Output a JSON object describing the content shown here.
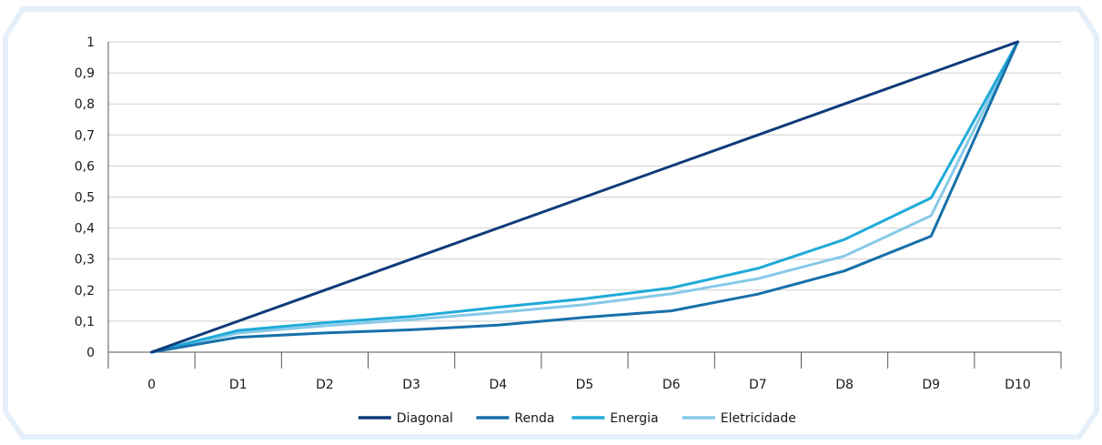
{
  "chart_data": {
    "type": "line",
    "title": "",
    "xlabel": "",
    "ylabel": "",
    "categories": [
      "0",
      "D1",
      "D2",
      "D3",
      "D4",
      "D5",
      "D6",
      "D7",
      "D8",
      "D9",
      "D10"
    ],
    "ylim": [
      0,
      1
    ],
    "yticks": [
      "0",
      "0,1",
      "0,2",
      "0,3",
      "0,4",
      "0,5",
      "0,6",
      "0,7",
      "0,8",
      "0,9",
      "1"
    ],
    "grid": true,
    "legend_position": "bottom",
    "series": [
      {
        "name": "Diagonal",
        "color": "#0f3a7a",
        "values": [
          0,
          0.1,
          0.2,
          0.3,
          0.4,
          0.5,
          0.6,
          0.7,
          0.8,
          0.9,
          1
        ]
      },
      {
        "name": "Renda",
        "color": "#1770aa",
        "values": [
          0,
          0.048,
          0.062,
          0.072,
          0.087,
          0.112,
          0.133,
          0.187,
          0.262,
          0.374,
          1
        ]
      },
      {
        "name": "Energia",
        "color": "#20aad8",
        "values": [
          0,
          0.07,
          0.095,
          0.115,
          0.145,
          0.172,
          0.207,
          0.27,
          0.363,
          0.497,
          1
        ]
      },
      {
        "name": "Eletricidade",
        "color": "#86c9e8",
        "values": [
          0,
          0.062,
          0.085,
          0.105,
          0.128,
          0.153,
          0.188,
          0.237,
          0.31,
          0.44,
          1
        ]
      }
    ]
  },
  "frame_color": "#e5eff9"
}
